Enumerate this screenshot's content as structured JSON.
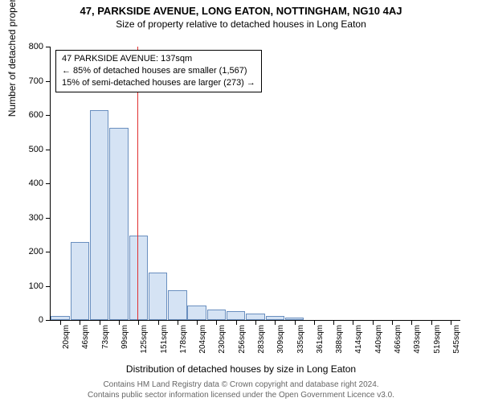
{
  "title": "47, PARKSIDE AVENUE, LONG EATON, NOTTINGHAM, NG10 4AJ",
  "subtitle": "Size of property relative to detached houses in Long Eaton",
  "y_axis": {
    "title": "Number of detached properties",
    "min": 0,
    "max": 800,
    "step": 100,
    "ticks": [
      0,
      100,
      200,
      300,
      400,
      500,
      600,
      700,
      800
    ]
  },
  "x_axis": {
    "title": "Distribution of detached houses by size in Long Eaton",
    "labels": [
      "20sqm",
      "46sqm",
      "73sqm",
      "99sqm",
      "125sqm",
      "151sqm",
      "178sqm",
      "204sqm",
      "230sqm",
      "256sqm",
      "283sqm",
      "309sqm",
      "335sqm",
      "361sqm",
      "388sqm",
      "414sqm",
      "440sqm",
      "466sqm",
      "493sqm",
      "519sqm",
      "545sqm"
    ]
  },
  "chart": {
    "type": "histogram",
    "bar_fill": "#d5e3f4",
    "bar_border": "#6a8fbf",
    "background": "#ffffff",
    "grid_color": "#000000",
    "reference_line": {
      "x_index_between": 4.45,
      "color": "#e03030",
      "label": "137sqm"
    },
    "values": [
      12,
      228,
      615,
      562,
      248,
      140,
      88,
      42,
      30,
      25,
      20,
      12,
      8,
      0,
      0,
      0,
      0,
      0,
      0,
      0,
      0
    ]
  },
  "annotation": {
    "line1": "47 PARKSIDE AVENUE: 137sqm",
    "line2": "← 85% of detached houses are smaller (1,567)",
    "line3": "15% of semi-detached houses are larger (273) →"
  },
  "footer": {
    "line1": "Contains HM Land Registry data © Crown copyright and database right 2024.",
    "line2": "Contains public sector information licensed under the Open Government Licence v3.0."
  },
  "fonts": {
    "title_pt": 13,
    "subtitle_pt": 12,
    "axis_pt": 12,
    "tick_pt": 11,
    "footer_pt": 10
  }
}
